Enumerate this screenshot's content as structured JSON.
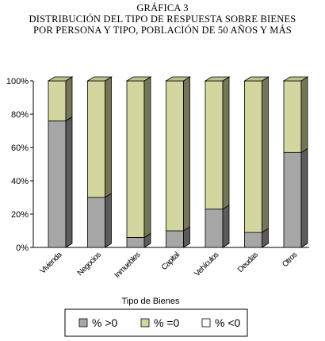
{
  "titles": {
    "line1": "GRÁFICA 3",
    "line2": "DISTRIBUCIÓN DEL TIPO DE RESPUESTA SOBRE BIENES",
    "line3": "POR PERSONA Y TIPO, POBLACIÓN DE 50 AÑOS Y MÁS"
  },
  "chart_data": {
    "type": "bar",
    "stacked": true,
    "percent": true,
    "style": "3d",
    "categories": [
      "Vivienda",
      "Negocios",
      "Inmuebles",
      "Capital",
      "Vehículos",
      "Deudas",
      "Otros"
    ],
    "series": [
      {
        "name": "% >0",
        "color": "#a6a6a6",
        "values": [
          76,
          30,
          6,
          10,
          23,
          9,
          57
        ]
      },
      {
        "name": "% =0",
        "color": "#d4d6a0",
        "values": [
          24,
          70,
          94,
          90,
          77,
          91,
          43
        ]
      },
      {
        "name": "% <0",
        "color": "#ffffff",
        "values": [
          0,
          0,
          0,
          0,
          0,
          0,
          0
        ]
      }
    ],
    "yticks": [
      "0%",
      "20%",
      "40%",
      "60%",
      "80%",
      "100%"
    ],
    "ylim": [
      0,
      100
    ],
    "xlabel": "Tipo de Bienes",
    "ylabel": "",
    "legend_position": "bottom"
  }
}
